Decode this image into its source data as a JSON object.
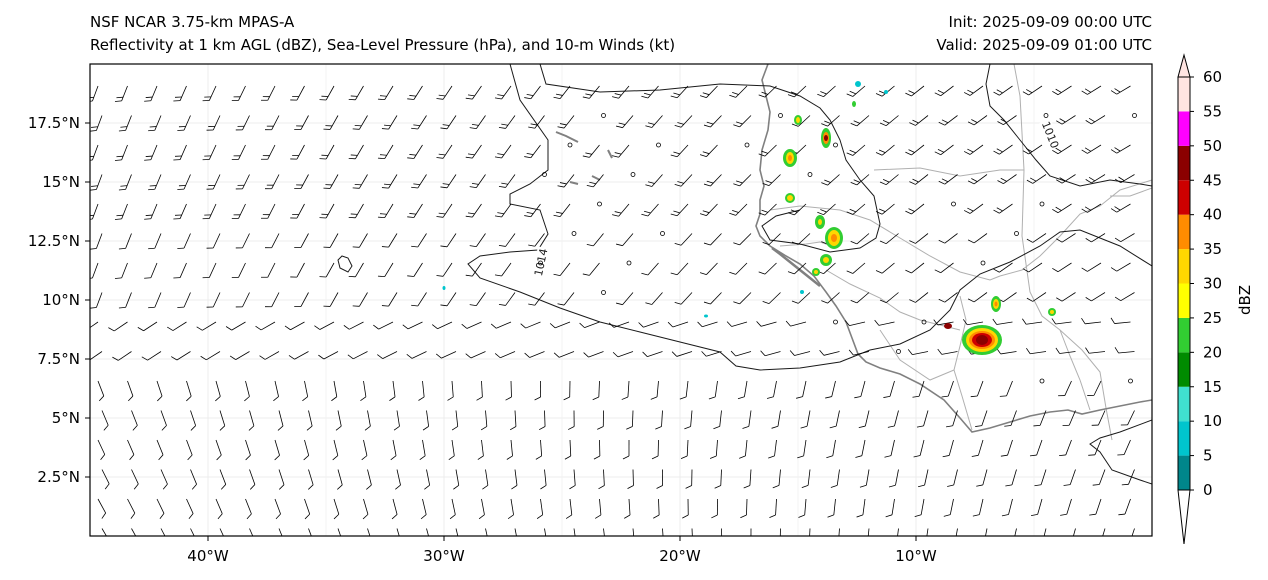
{
  "header": {
    "model": "NSF NCAR 3.75-km MPAS-A",
    "fields": "Reflectivity at 1 km AGL (dBZ), Sea-Level Pressure (hPa), and 10-m Winds (kt)",
    "init": "Init: 2025-09-09 00:00 UTC",
    "valid": "Valid: 2025-09-09 01:00 UTC"
  },
  "axes": {
    "lon_min": -45.0,
    "lon_max": 0.0,
    "lat_min": 0.0,
    "lat_max": 20.0,
    "lon_ticks": [
      {
        "value": -40,
        "label": "40°W"
      },
      {
        "value": -30,
        "label": "30°W"
      },
      {
        "value": -20,
        "label": "20°W"
      },
      {
        "value": -10,
        "label": "10°W"
      }
    ],
    "lat_ticks": [
      {
        "value": 2.5,
        "label": "2.5°N"
      },
      {
        "value": 5,
        "label": "5°N"
      },
      {
        "value": 7.5,
        "label": "7.5°N"
      },
      {
        "value": 10,
        "label": "10°N"
      },
      {
        "value": 12.5,
        "label": "12.5°N"
      },
      {
        "value": 15,
        "label": "15°N"
      },
      {
        "value": 17.5,
        "label": "17.5°N"
      }
    ]
  },
  "colorbar": {
    "label": "dBZ",
    "levels": [
      {
        "value": 0,
        "color": "#00868b"
      },
      {
        "value": 5,
        "color": "#00c5cd"
      },
      {
        "value": 10,
        "color": "#40e0d0"
      },
      {
        "value": 15,
        "color": "#008b00"
      },
      {
        "value": 20,
        "color": "#32cd32"
      },
      {
        "value": 25,
        "color": "#ffff00"
      },
      {
        "value": 30,
        "color": "#ffd700"
      },
      {
        "value": 35,
        "color": "#ff8c00"
      },
      {
        "value": 40,
        "color": "#cd0000"
      },
      {
        "value": 45,
        "color": "#8b0000"
      },
      {
        "value": 50,
        "color": "#ff00ff"
      },
      {
        "value": 55,
        "color": "#ffe4e1"
      }
    ],
    "tick_values": [
      "0",
      "5",
      "10",
      "15",
      "20",
      "25",
      "30",
      "35",
      "40",
      "45",
      "50",
      "55",
      "60"
    ],
    "under_color": "#ffffff",
    "over_color": "#ffe4e1"
  },
  "isobars": [
    {
      "value": "1014",
      "label_lon": -25.9,
      "label_lat": 11.6
    },
    {
      "value": "1010",
      "label_lon": -4.3,
      "label_lat": 17.0
    }
  ],
  "coastline_color": "#808080",
  "border_color": "#b0b0b0",
  "isobar_color": "#1a1a1a"
}
